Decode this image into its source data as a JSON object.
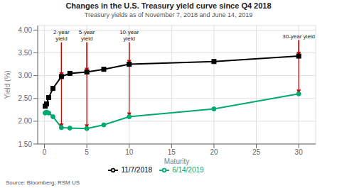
{
  "chart_data": {
    "type": "line",
    "title": "Changes in the U.S. Treasury yield curve since Q4 2018",
    "subtitle": "Treasury yields as of November 7, 2018 and June 14, 2019",
    "source": "Source: Bloomberg; RSM US",
    "xlabel": "Maturity",
    "ylabel": "Yield (%)",
    "xlim": [
      -0.8,
      32
    ],
    "ylim": [
      1.5,
      4.1
    ],
    "xticks": [
      0,
      5,
      10,
      15,
      20,
      25,
      30
    ],
    "yticks": [
      {
        "value": 1.5,
        "label": "1.50"
      },
      {
        "value": 2,
        "label": "2.00"
      },
      {
        "value": 2.5,
        "label": "2.50"
      },
      {
        "value": 3,
        "label": "3.00"
      },
      {
        "value": 3.5,
        "label": "3.50"
      },
      {
        "value": 4,
        "label": "4.00"
      }
    ],
    "grid": true,
    "legend": "bottom",
    "x": [
      0.08,
      0.25,
      0.5,
      1,
      2,
      3,
      5,
      7,
      10,
      20,
      30
    ],
    "series": [
      {
        "name": "11/7/2018",
        "color": "#000000",
        "marker": "square",
        "values": [
          2.33,
          2.38,
          2.52,
          2.72,
          2.98,
          3.05,
          3.08,
          3.14,
          3.25,
          3.31,
          3.43
        ]
      },
      {
        "name": "6/14/2019",
        "color": "#00aa6e",
        "marker": "circle",
        "values": [
          2.18,
          2.2,
          2.18,
          2.1,
          1.86,
          1.85,
          1.84,
          1.92,
          2.1,
          2.27,
          2.6
        ]
      }
    ],
    "annotations": [
      {
        "text": "2-year\nyield",
        "x": 2,
        "y": 3.73,
        "targets": [
          2.98,
          1.86
        ],
        "color": "#cc0000"
      },
      {
        "text": "5-year\nyield",
        "x": 5,
        "y": 3.73,
        "targets": [
          3.08,
          1.84
        ],
        "color": "#cc0000"
      },
      {
        "text": "10-year\nyield",
        "x": 10,
        "y": 3.73,
        "targets": [
          3.25,
          2.1
        ],
        "color": "#cc0000"
      },
      {
        "text": "30-year yield",
        "x": 30,
        "y": 3.78,
        "targets": [
          3.43,
          2.6
        ],
        "color": "#cc0000"
      }
    ]
  }
}
